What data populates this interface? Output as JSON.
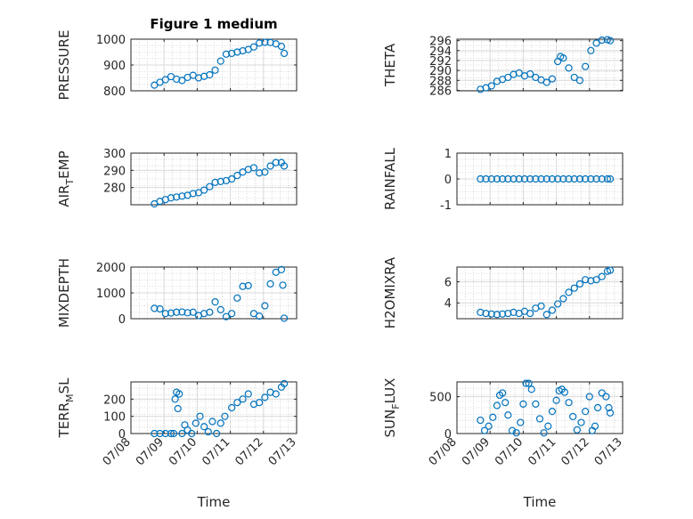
{
  "figure": {
    "title": "Figure 1 medium",
    "xlabel": "Time",
    "marker_color": "#0072BD"
  },
  "chart_data": [
    {
      "type": "scatter",
      "row": 0,
      "col": 0,
      "title": "Figure 1 medium",
      "ylabel_main": "PRESSURE",
      "ylabel_sub": "",
      "xlabel": "",
      "xlim": [
        "07/08",
        "07/13"
      ],
      "xticks": [
        "07/08",
        "07/09",
        "07/10",
        "07/11",
        "07/12",
        "07/13"
      ],
      "show_xticklabels": false,
      "ylim": [
        800,
        1000
      ],
      "yticks": [
        800,
        900,
        1000
      ],
      "ytick_labels": [
        "800",
        "900",
        "1000"
      ],
      "x": [
        "07/08 17:00",
        "07/08 21:00",
        "07/09 01:00",
        "07/09 05:00",
        "07/09 09:00",
        "07/09 13:00",
        "07/09 17:00",
        "07/09 21:00",
        "07/10 01:00",
        "07/10 05:00",
        "07/10 09:00",
        "07/10 13:00",
        "07/10 17:00",
        "07/10 21:00",
        "07/11 01:00",
        "07/11 05:00",
        "07/11 09:00",
        "07/11 13:00",
        "07/11 17:00",
        "07/11 21:00",
        "07/12 01:00",
        "07/12 05:00",
        "07/12 09:00",
        "07/12 13:00",
        "07/12 15:00"
      ],
      "y": [
        822,
        833,
        843,
        855,
        845,
        840,
        852,
        860,
        850,
        856,
        862,
        880,
        915,
        942,
        945,
        950,
        955,
        960,
        970,
        985,
        988,
        987,
        982,
        972,
        945
      ]
    },
    {
      "type": "scatter",
      "row": 0,
      "col": 1,
      "title": "",
      "ylabel_main": "THETA",
      "ylabel_sub": "",
      "xlabel": "",
      "xlim": [
        "07/08",
        "07/13"
      ],
      "xticks": [
        "07/08",
        "07/09",
        "07/10",
        "07/11",
        "07/12",
        "07/13"
      ],
      "show_xticklabels": false,
      "ylim": [
        285.9,
        296.3
      ],
      "yticks": [
        286,
        288,
        290,
        292,
        294,
        296
      ],
      "ytick_labels": [
        "286",
        "288",
        "290",
        "292",
        "294",
        "296"
      ],
      "x": [
        "07/08 17:00",
        "07/08 21:00",
        "07/09 01:00",
        "07/09 05:00",
        "07/09 09:00",
        "07/09 13:00",
        "07/09 17:00",
        "07/09 21:00",
        "07/10 01:00",
        "07/10 05:00",
        "07/10 09:00",
        "07/10 13:00",
        "07/10 17:00",
        "07/10 21:00",
        "07/11 01:00",
        "07/11 03:00",
        "07/11 05:00",
        "07/11 09:00",
        "07/11 13:00",
        "07/11 17:00",
        "07/11 21:00",
        "07/12 01:00",
        "07/12 05:00",
        "07/12 09:00",
        "07/12 13:00",
        "07/12 15:00"
      ],
      "y": [
        286.2,
        286.5,
        286.9,
        287.8,
        288.2,
        288.6,
        289.2,
        289.5,
        288.9,
        289.3,
        288.6,
        288.1,
        287.6,
        288.3,
        291.8,
        292.8,
        292.5,
        290.5,
        288.6,
        288.0,
        290.8,
        294.0,
        295.5,
        296.1,
        296.2,
        296.0
      ]
    },
    {
      "type": "scatter",
      "row": 1,
      "col": 0,
      "title": "",
      "ylabel_main": "AIR",
      "ylabel_sub": "T",
      "ylabel_tail": "EMP",
      "xlabel": "",
      "xlim": [
        "07/08",
        "07/13"
      ],
      "xticks": [
        "07/08",
        "07/09",
        "07/10",
        "07/11",
        "07/12",
        "07/13"
      ],
      "show_xticklabels": false,
      "ylim": [
        270,
        300
      ],
      "yticks": [
        280,
        290,
        300
      ],
      "ytick_labels": [
        "280",
        "290",
        "300"
      ],
      "x": [
        "07/08 17:00",
        "07/08 21:00",
        "07/09 01:00",
        "07/09 05:00",
        "07/09 09:00",
        "07/09 13:00",
        "07/09 17:00",
        "07/09 21:00",
        "07/10 01:00",
        "07/10 05:00",
        "07/10 09:00",
        "07/10 13:00",
        "07/10 17:00",
        "07/10 21:00",
        "07/11 01:00",
        "07/11 05:00",
        "07/11 09:00",
        "07/11 13:00",
        "07/11 17:00",
        "07/11 21:00",
        "07/12 01:00",
        "07/12 05:00",
        "07/12 09:00",
        "07/12 13:00",
        "07/12 15:00"
      ],
      "y": [
        270.5,
        272.0,
        273.0,
        274.0,
        274.5,
        275.0,
        275.5,
        276.5,
        277.0,
        278.5,
        280.5,
        283.0,
        283.5,
        284.0,
        285.0,
        287.0,
        289.0,
        290.5,
        291.5,
        288.5,
        289.0,
        292.5,
        294.5,
        294.5,
        292.5
      ]
    },
    {
      "type": "scatter",
      "row": 1,
      "col": 1,
      "title": "",
      "ylabel_main": "RAINFALL",
      "ylabel_sub": "",
      "xlabel": "",
      "xlim": [
        "07/08",
        "07/13"
      ],
      "xticks": [
        "07/08",
        "07/09",
        "07/10",
        "07/11",
        "07/12",
        "07/13"
      ],
      "show_xticklabels": false,
      "ylim": [
        -1,
        1
      ],
      "yticks": [
        -1,
        0,
        1
      ],
      "ytick_labels": [
        "-1",
        "0",
        "1"
      ],
      "x": [
        "07/08 17:00",
        "07/08 21:00",
        "07/09 01:00",
        "07/09 05:00",
        "07/09 09:00",
        "07/09 13:00",
        "07/09 17:00",
        "07/09 21:00",
        "07/10 01:00",
        "07/10 05:00",
        "07/10 09:00",
        "07/10 13:00",
        "07/10 17:00",
        "07/10 21:00",
        "07/11 01:00",
        "07/11 05:00",
        "07/11 09:00",
        "07/11 13:00",
        "07/11 17:00",
        "07/11 21:00",
        "07/12 01:00",
        "07/12 05:00",
        "07/12 09:00",
        "07/12 13:00",
        "07/12 15:00"
      ],
      "y": [
        0,
        0,
        0,
        0,
        0,
        0,
        0,
        0,
        0,
        0,
        0,
        0,
        0,
        0,
        0,
        0,
        0,
        0,
        0,
        0,
        0,
        0,
        0,
        0,
        0
      ]
    },
    {
      "type": "scatter",
      "row": 2,
      "col": 0,
      "title": "",
      "ylabel_main": "MIXDEPTH",
      "ylabel_sub": "",
      "xlabel": "",
      "xlim": [
        "07/08",
        "07/13"
      ],
      "xticks": [
        "07/08",
        "07/09",
        "07/10",
        "07/11",
        "07/12",
        "07/13"
      ],
      "show_xticklabels": false,
      "ylim": [
        0,
        2000
      ],
      "yticks": [
        0,
        1000,
        2000
      ],
      "ytick_labels": [
        "0",
        "1000",
        "2000"
      ],
      "x": [
        "07/08 17:00",
        "07/08 21:00",
        "07/09 01:00",
        "07/09 05:00",
        "07/09 09:00",
        "07/09 13:00",
        "07/09 17:00",
        "07/09 21:00",
        "07/10 01:00",
        "07/10 05:00",
        "07/10 09:00",
        "07/10 13:00",
        "07/10 17:00",
        "07/10 21:00",
        "07/11 01:00",
        "07/11 05:00",
        "07/11 09:00",
        "07/11 13:00",
        "07/11 17:00",
        "07/11 21:00",
        "07/12 01:00",
        "07/12 05:00",
        "07/12 09:00",
        "07/12 13:00",
        "07/12 14:00",
        "07/12 15:00"
      ],
      "y": [
        400,
        380,
        200,
        220,
        250,
        260,
        230,
        250,
        120,
        200,
        250,
        650,
        350,
        80,
        200,
        800,
        1250,
        1280,
        200,
        100,
        500,
        1350,
        1800,
        1900,
        1300,
        20
      ]
    },
    {
      "type": "scatter",
      "row": 2,
      "col": 1,
      "title": "",
      "ylabel_main": "H2OMIXRA",
      "ylabel_sub": "",
      "xlabel": "",
      "xlim": [
        "07/08",
        "07/13"
      ],
      "xticks": [
        "07/08",
        "07/09",
        "07/10",
        "07/11",
        "07/12",
        "07/13"
      ],
      "show_xticklabels": false,
      "ylim": [
        2.5,
        7.4
      ],
      "yticks": [
        4,
        6
      ],
      "ytick_labels": [
        "4",
        "6"
      ],
      "x": [
        "07/08 17:00",
        "07/08 21:00",
        "07/09 01:00",
        "07/09 05:00",
        "07/09 09:00",
        "07/09 13:00",
        "07/09 17:00",
        "07/09 21:00",
        "07/10 01:00",
        "07/10 05:00",
        "07/10 09:00",
        "07/10 13:00",
        "07/10 17:00",
        "07/10 21:00",
        "07/11 01:00",
        "07/11 05:00",
        "07/11 09:00",
        "07/11 13:00",
        "07/11 17:00",
        "07/11 21:00",
        "07/12 01:00",
        "07/12 05:00",
        "07/12 09:00",
        "07/12 13:00",
        "07/12 15:00"
      ],
      "y": [
        3.1,
        3.0,
        2.95,
        2.9,
        2.95,
        3.0,
        3.1,
        3.0,
        3.2,
        3.0,
        3.5,
        3.7,
        2.9,
        3.3,
        3.9,
        4.4,
        5.0,
        5.4,
        5.8,
        6.2,
        6.1,
        6.2,
        6.5,
        7.0,
        7.1
      ]
    },
    {
      "type": "scatter",
      "row": 3,
      "col": 0,
      "title": "",
      "ylabel_main": "TERR",
      "ylabel_sub": "M",
      "ylabel_tail": "SL",
      "xlabel": "Time",
      "xlim": [
        "07/08",
        "07/13"
      ],
      "xticks": [
        "07/08",
        "07/09",
        "07/10",
        "07/11",
        "07/12",
        "07/13"
      ],
      "show_xticklabels": true,
      "ylim": [
        0,
        300
      ],
      "yticks": [
        0,
        100,
        200,
        300
      ],
      "ytick_labels": [
        "0",
        "100",
        "200",
        ""
      ],
      "x": [
        "07/08 17:00",
        "07/08 21:00",
        "07/09 01:00",
        "07/09 05:00",
        "07/09 07:00",
        "07/09 08:00",
        "07/09 09:00",
        "07/09 10:00",
        "07/09 11:00",
        "07/09 13:00",
        "07/09 15:00",
        "07/09 17:00",
        "07/09 20:00",
        "07/09 23:00",
        "07/10 02:00",
        "07/10 05:00",
        "07/10 08:00",
        "07/10 11:00",
        "07/10 14:00",
        "07/10 17:00",
        "07/10 20:00",
        "07/11 01:00",
        "07/11 05:00",
        "07/11 09:00",
        "07/11 13:00",
        "07/11 17:00",
        "07/11 21:00",
        "07/12 01:00",
        "07/12 05:00",
        "07/12 09:00",
        "07/12 13:00",
        "07/12 15:00"
      ],
      "y": [
        0,
        0,
        0,
        0,
        0,
        200,
        240,
        145,
        230,
        0,
        50,
        20,
        0,
        60,
        100,
        40,
        10,
        70,
        0,
        60,
        100,
        150,
        180,
        200,
        230,
        170,
        180,
        210,
        240,
        230,
        270,
        290
      ]
    },
    {
      "type": "scatter",
      "row": 3,
      "col": 1,
      "title": "",
      "ylabel_main": "SUN",
      "ylabel_sub": "F",
      "ylabel_tail": "LUX",
      "xlabel": "Time",
      "xlim": [
        "07/08",
        "07/13"
      ],
      "xticks": [
        "07/08",
        "07/09",
        "07/10",
        "07/11",
        "07/12",
        "07/13"
      ],
      "show_xticklabels": true,
      "ylim": [
        0,
        700
      ],
      "yticks": [
        0,
        500
      ],
      "ytick_labels": [
        "0",
        "500"
      ],
      "x": [
        "07/08 17:00",
        "07/08 20:00",
        "07/08 23:00",
        "07/09 02:00",
        "07/09 05:00",
        "07/09 07:00",
        "07/09 09:00",
        "07/09 11:00",
        "07/09 13:00",
        "07/09 16:00",
        "07/09 19:00",
        "07/09 22:00",
        "07/10 00:00",
        "07/10 02:00",
        "07/10 04:00",
        "07/10 06:00",
        "07/10 09:00",
        "07/10 12:00",
        "07/10 15:00",
        "07/10 18:00",
        "07/10 21:00",
        "07/11 00:00",
        "07/11 02:00",
        "07/11 04:00",
        "07/11 06:00",
        "07/11 09:00",
        "07/11 12:00",
        "07/11 15:00",
        "07/11 18:00",
        "07/11 21:00",
        "07/12 00:00",
        "07/12 02:00",
        "07/12 04:00",
        "07/12 06:00",
        "07/12 09:00",
        "07/12 12:00",
        "07/12 14:00",
        "07/12 15:00"
      ],
      "y": [
        180,
        40,
        100,
        220,
        380,
        520,
        550,
        420,
        250,
        40,
        10,
        150,
        400,
        680,
        680,
        600,
        400,
        200,
        10,
        100,
        300,
        450,
        580,
        600,
        560,
        420,
        230,
        50,
        150,
        300,
        500,
        40,
        100,
        350,
        550,
        500,
        350,
        280
      ]
    }
  ]
}
